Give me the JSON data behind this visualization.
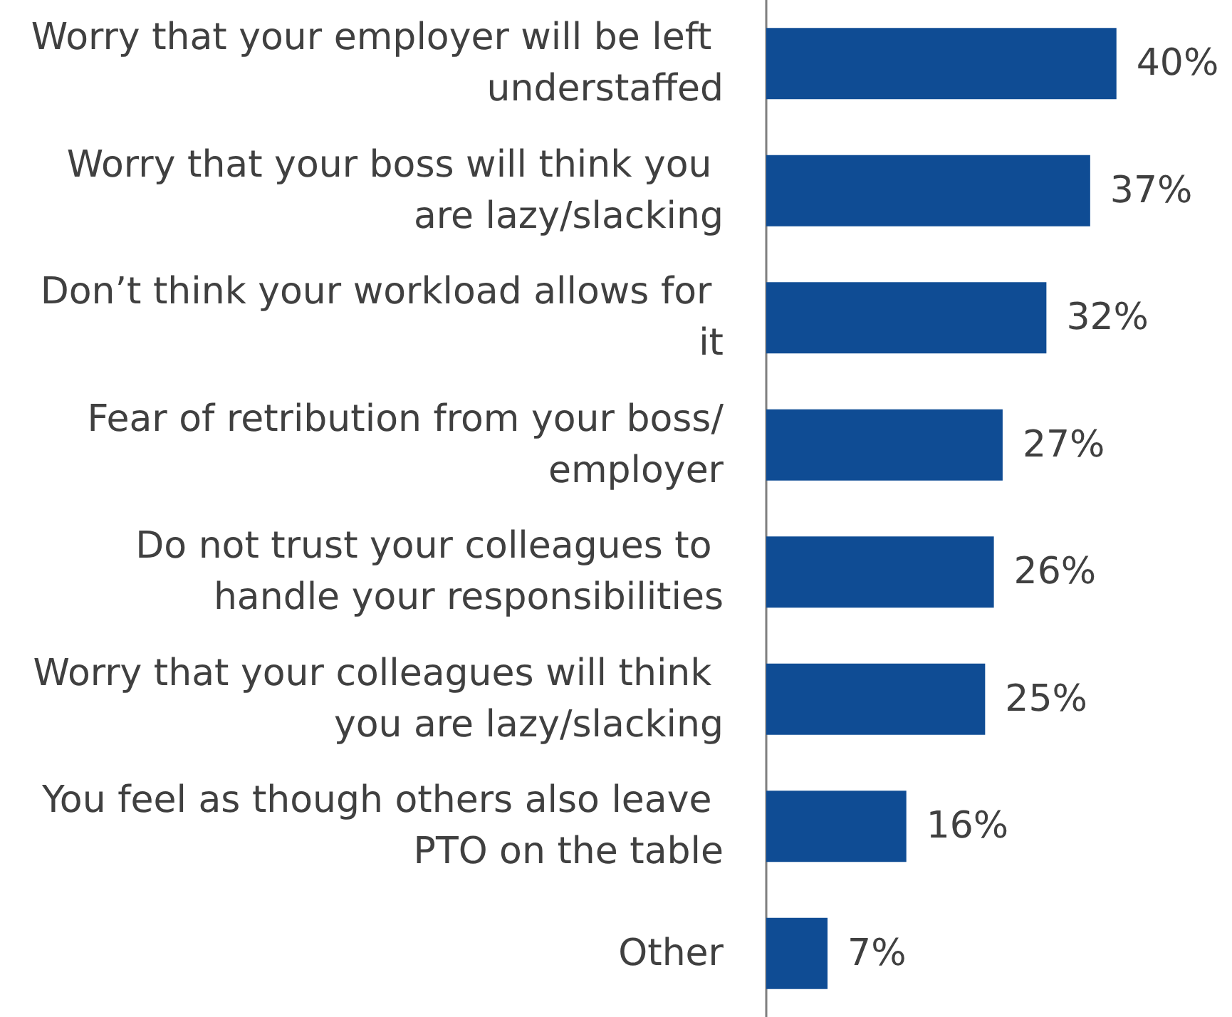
{
  "chart_data": {
    "type": "bar",
    "orientation": "horizontal",
    "categories": [
      "Worry that your employer will be left understaffed",
      "Worry that your boss will think you are lazy/slacking",
      "Don’t think your workload allows for it",
      "Fear of retribution from your boss/employer",
      "Do not trust your colleagues to handle your responsibilities",
      "Worry that your colleagues will think you are lazy/slacking",
      "You feel as though others also leave PTO on the table",
      "Other"
    ],
    "values": [
      40,
      37,
      32,
      27,
      26,
      25,
      16,
      7
    ],
    "value_labels": [
      "40%",
      "37%",
      "32%",
      "27%",
      "26%",
      "25%",
      "16%",
      "7%"
    ],
    "color": "#0f4c94"
  }
}
